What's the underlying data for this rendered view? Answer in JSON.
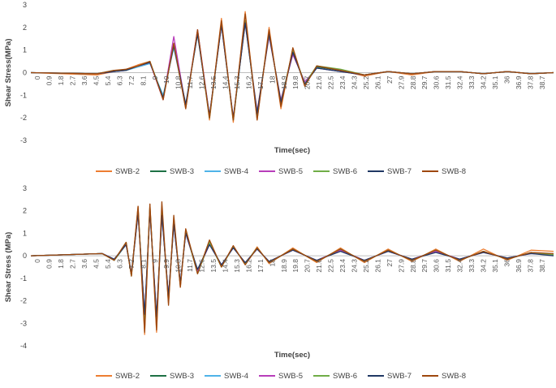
{
  "chart_data": [
    {
      "type": "line",
      "title": "",
      "xlabel": "Time(sec)",
      "ylabel": "Shear Stress(MPa)",
      "ylim": [
        -3,
        3
      ],
      "yticks": [
        "-3",
        "-2",
        "-1",
        "0",
        "1",
        "2",
        "3"
      ],
      "x_ticks": [
        "0",
        "0.9",
        "1.8",
        "2.7",
        "3.6",
        "4.5",
        "5.4",
        "6.3",
        "7.2",
        "8.1",
        "9",
        "10",
        "10.8",
        "11.7",
        "12.6",
        "13.5",
        "14.4",
        "15.3",
        "16.2",
        "17.1",
        "18",
        "18.9",
        "19.8",
        "20.7",
        "21.6",
        "22.5",
        "23.4",
        "24.3",
        "25.2",
        "26.1",
        "27",
        "27.9",
        "28.8",
        "29.7",
        "30.6",
        "31.5",
        "32.4",
        "33.3",
        "34.2",
        "35.1",
        "36",
        "36.9",
        "37.8",
        "38.7"
      ],
      "xlim": [
        0,
        39.5
      ],
      "grid": false,
      "legend": "bottom",
      "series": [
        {
          "name": "SWB-2",
          "color": "#ED7D31",
          "x": [
            0,
            5,
            6.3,
            7.2,
            8.1,
            9,
            10,
            10.8,
            11.7,
            12.6,
            13.5,
            14.4,
            15.3,
            16.2,
            17.1,
            18,
            18.9,
            19.8,
            20.7,
            21.6,
            23.4,
            25.2,
            27,
            28.8,
            30.6,
            32.4,
            34.2,
            36,
            37.8,
            39.5
          ],
          "y": [
            0,
            -0.1,
            0.05,
            0.15,
            0.35,
            0.5,
            -1.2,
            1.3,
            -1.6,
            1.9,
            -2.1,
            2.4,
            -2.2,
            2.7,
            -2.1,
            2.0,
            -1.6,
            1.1,
            -0.6,
            0.3,
            0.1,
            -0.15,
            0.05,
            -0.1,
            0.05,
            0.05,
            -0.05,
            0.05,
            -0.05,
            0
          ]
        },
        {
          "name": "SWB-3",
          "color": "#1E7145",
          "x": [
            0,
            5,
            6.3,
            7.2,
            8.1,
            9,
            10,
            10.8,
            11.7,
            12.6,
            13.5,
            14.4,
            15.3,
            16.2,
            17.1,
            18,
            18.9,
            19.8,
            20.7,
            21.6,
            23.4,
            25.2,
            27,
            28.8,
            30.6,
            32.4,
            34.2,
            36,
            37.8,
            39.5
          ],
          "y": [
            0,
            -0.05,
            0.1,
            0.1,
            0.3,
            0.45,
            -1.1,
            1.2,
            -1.5,
            1.8,
            -2.0,
            2.2,
            -2.1,
            2.3,
            -1.9,
            1.8,
            -1.4,
            1.0,
            -0.5,
            0.25,
            0.1,
            -0.1,
            0.05,
            -0.05,
            0.05,
            0.05,
            -0.05,
            0.05,
            -0.05,
            0
          ]
        },
        {
          "name": "SWB-4",
          "color": "#4FB3E8",
          "x": [
            0,
            5,
            6.3,
            7.2,
            8.1,
            9,
            10,
            10.8,
            11.7,
            12.6,
            13.5,
            14.4,
            15.3,
            16.2,
            17.1,
            18,
            18.9,
            19.8,
            20.7,
            21.6,
            23.4,
            25.2,
            27,
            28.8,
            30.6,
            32.4,
            34.2,
            36,
            37.8,
            39.5
          ],
          "y": [
            0,
            -0.05,
            0.05,
            0.1,
            0.25,
            0.4,
            -1.0,
            1.1,
            -1.4,
            1.7,
            -1.9,
            2.1,
            -2.0,
            2.2,
            -1.8,
            1.7,
            -1.3,
            0.9,
            -0.5,
            0.2,
            0.05,
            -0.1,
            0.05,
            -0.05,
            0.05,
            0.05,
            -0.05,
            0.05,
            -0.05,
            0
          ]
        },
        {
          "name": "SWB-5",
          "color": "#B83DBA",
          "x": [
            0,
            5,
            6.3,
            7.2,
            8.1,
            9,
            10,
            10.8,
            11.7,
            12.6,
            13.5,
            14.4,
            15.3,
            16.2,
            17.1,
            18,
            18.9,
            19.8,
            20.7,
            21.6,
            23.4,
            25.2,
            27,
            28.8,
            30.6,
            32.4,
            34.2,
            36,
            37.8,
            39.5
          ],
          "y": [
            0,
            -0.05,
            0.05,
            0.1,
            0.3,
            0.45,
            -1.2,
            1.6,
            -1.5,
            1.9,
            -1.9,
            2.1,
            -2.0,
            2.2,
            -1.7,
            1.6,
            -1.2,
            0.8,
            -0.4,
            0.2,
            0.05,
            -0.1,
            0.05,
            -0.05,
            0.05,
            0.05,
            -0.05,
            0.05,
            -0.05,
            0
          ]
        },
        {
          "name": "SWB-6",
          "color": "#70AD47",
          "x": [
            0,
            5,
            6.3,
            7.2,
            8.1,
            9,
            10,
            10.8,
            11.7,
            12.6,
            13.5,
            14.4,
            15.3,
            16.2,
            17.1,
            18,
            18.9,
            19.8,
            20.7,
            21.6,
            23.4,
            25.2,
            27,
            28.8,
            30.6,
            32.4,
            34.2,
            36,
            37.8,
            39.5
          ],
          "y": [
            0,
            -0.05,
            0.1,
            0.1,
            0.3,
            0.5,
            -1.1,
            1.2,
            -1.5,
            1.8,
            -2.0,
            2.2,
            -2.1,
            2.3,
            -1.8,
            1.7,
            -1.3,
            1.0,
            -0.5,
            0.3,
            0.15,
            -0.1,
            0.05,
            -0.05,
            0.05,
            0.05,
            -0.05,
            0.05,
            -0.05,
            0
          ]
        },
        {
          "name": "SWB-7",
          "color": "#203864",
          "x": [
            0,
            5,
            6.3,
            7.2,
            8.1,
            9,
            10,
            10.8,
            11.7,
            12.6,
            13.5,
            14.4,
            15.3,
            16.2,
            17.1,
            18,
            18.9,
            19.8,
            20.7,
            21.6,
            23.4,
            25.2,
            27,
            28.8,
            30.6,
            32.4,
            34.2,
            36,
            37.8,
            39.5
          ],
          "y": [
            0,
            -0.05,
            0.05,
            0.1,
            0.3,
            0.45,
            -1.1,
            1.2,
            -1.4,
            1.7,
            -1.9,
            2.1,
            -2.0,
            2.2,
            -1.8,
            1.7,
            -1.3,
            0.9,
            -0.5,
            0.2,
            0.05,
            -0.1,
            0.05,
            -0.05,
            0.05,
            0.05,
            -0.05,
            0.05,
            -0.05,
            0
          ]
        },
        {
          "name": "SWB-8",
          "color": "#9E480E",
          "x": [
            0,
            5,
            6.3,
            7.2,
            8.1,
            9,
            10,
            10.8,
            11.7,
            12.6,
            13.5,
            14.4,
            15.3,
            16.2,
            17.1,
            18,
            18.9,
            19.8,
            20.7,
            21.6,
            23.4,
            25.2,
            27,
            28.8,
            30.6,
            32.4,
            34.2,
            36,
            37.8,
            39.5
          ],
          "y": [
            0,
            -0.05,
            0.1,
            0.15,
            0.3,
            0.5,
            -1.2,
            1.3,
            -1.6,
            1.9,
            -2.0,
            2.3,
            -2.1,
            2.6,
            -2.1,
            1.9,
            -1.5,
            1.1,
            -0.6,
            0.3,
            0.1,
            -0.1,
            0.05,
            -0.05,
            0.05,
            0.05,
            -0.05,
            0.05,
            -0.05,
            0
          ]
        }
      ]
    },
    {
      "type": "line",
      "title": "",
      "xlabel": "Time(sec)",
      "ylabel": "Shear Stress (MPa)",
      "ylim": [
        -4,
        3
      ],
      "yticks": [
        "-4",
        "-3",
        "-2",
        "-1",
        "0",
        "1",
        "2",
        "3"
      ],
      "x_ticks": [
        "0",
        "0.9",
        "1.8",
        "2.7",
        "3.6",
        "4.5",
        "5.4",
        "6.3",
        "7.2",
        "8.1",
        "9",
        "9.9",
        "10.8",
        "11.7",
        "12.6",
        "13.5",
        "14.4",
        "15.3",
        "16.2",
        "17.1",
        "18",
        "18.9",
        "19.8",
        "20.7",
        "21.6",
        "22.5",
        "23.4",
        "24.3",
        "25.2",
        "26.1",
        "27",
        "27.9",
        "28.8",
        "29.7",
        "30.6",
        "31.5",
        "32.4",
        "33.3",
        "34.2",
        "35.1",
        "36",
        "36.9",
        "37.8",
        "38.7"
      ],
      "xlim": [
        0,
        39.5
      ],
      "grid": false,
      "legend": "bottom",
      "series": [
        {
          "name": "SWB-2",
          "color": "#ED7D31",
          "x": [
            0,
            5.4,
            6.3,
            7.2,
            7.6,
            8.1,
            8.6,
            9,
            9.5,
            9.9,
            10.4,
            10.8,
            11.3,
            11.7,
            12.6,
            13.5,
            14.4,
            15.3,
            16.2,
            17.1,
            18,
            19.8,
            21.6,
            23.4,
            25.2,
            27,
            28.8,
            30.6,
            32.4,
            34.2,
            36,
            37.8,
            39.5
          ],
          "y": [
            0,
            0.1,
            -0.2,
            0.6,
            -0.9,
            2.2,
            -3.5,
            2.3,
            -3.4,
            2.1,
            -2.1,
            1.7,
            -1.4,
            1.2,
            -0.8,
            0.7,
            -0.5,
            0.45,
            -0.4,
            0.4,
            -0.35,
            0.35,
            -0.3,
            0.35,
            -0.3,
            0.3,
            -0.25,
            0.3,
            -0.25,
            0.3,
            -0.2,
            0.25,
            0.2
          ]
        },
        {
          "name": "SWB-3",
          "color": "#1E7145",
          "x": [
            0,
            5.4,
            6.3,
            7.2,
            7.6,
            8.1,
            8.6,
            9,
            9.5,
            9.9,
            10.4,
            10.8,
            11.3,
            11.7,
            12.6,
            13.5,
            14.4,
            15.3,
            16.2,
            17.1,
            18,
            19.8,
            21.6,
            23.4,
            25.2,
            27,
            28.8,
            30.6,
            32.4,
            34.2,
            36,
            37.8,
            39.5
          ],
          "y": [
            0,
            0.1,
            -0.2,
            0.5,
            -0.8,
            2.0,
            -2.8,
            2.1,
            -2.9,
            2.0,
            -1.9,
            1.5,
            -1.3,
            1.1,
            -0.7,
            0.6,
            -0.45,
            0.4,
            -0.35,
            0.35,
            -0.3,
            0.3,
            -0.25,
            0.3,
            -0.25,
            0.25,
            -0.2,
            0.25,
            -0.2,
            0.2,
            -0.15,
            0.15,
            0.05
          ]
        },
        {
          "name": "SWB-4",
          "color": "#4FB3E8",
          "x": [
            0,
            5.4,
            6.3,
            7.2,
            7.6,
            8.1,
            8.6,
            9,
            9.5,
            9.9,
            10.4,
            10.8,
            11.3,
            11.7,
            12.6,
            13.5,
            14.4,
            15.3,
            16.2,
            17.1,
            18,
            19.8,
            21.6,
            23.4,
            25.2,
            27,
            28.8,
            30.6,
            32.4,
            34.2,
            36,
            37.8,
            39.5
          ],
          "y": [
            0,
            0.1,
            -0.15,
            0.5,
            -0.8,
            1.9,
            -2.7,
            2.0,
            -2.8,
            1.9,
            -1.8,
            1.4,
            -1.2,
            1.0,
            -0.7,
            0.55,
            -0.4,
            0.35,
            -0.3,
            0.3,
            -0.25,
            0.25,
            -0.2,
            0.25,
            -0.2,
            0.2,
            -0.15,
            0.2,
            -0.15,
            0.15,
            -0.1,
            0.1,
            0.05
          ]
        },
        {
          "name": "SWB-5",
          "color": "#B83DBA",
          "x": [
            0,
            5.4,
            6.3,
            7.2,
            7.6,
            8.1,
            8.6,
            9,
            9.5,
            9.9,
            10.4,
            10.8,
            11.3,
            11.7,
            12.6,
            13.5,
            14.4,
            15.3,
            16.2,
            17.1,
            18,
            19.8,
            21.6,
            23.4,
            25.2,
            27,
            28.8,
            30.6,
            32.4,
            34.2,
            36,
            37.8,
            39.5
          ],
          "y": [
            0,
            0.1,
            -0.15,
            0.5,
            -0.8,
            1.9,
            -2.6,
            2.0,
            -2.7,
            1.8,
            -1.8,
            1.4,
            -1.2,
            1.0,
            -0.7,
            0.5,
            -0.4,
            0.35,
            -0.3,
            0.3,
            -0.25,
            0.25,
            -0.2,
            0.25,
            -0.2,
            0.2,
            -0.15,
            0.2,
            -0.15,
            0.15,
            -0.1,
            0.1,
            0.05
          ]
        },
        {
          "name": "SWB-6",
          "color": "#70AD47",
          "x": [
            0,
            5.4,
            6.3,
            7.2,
            7.6,
            8.1,
            8.6,
            9,
            9.5,
            9.9,
            10.4,
            10.8,
            11.3,
            11.7,
            12.6,
            13.5,
            14.4,
            15.3,
            16.2,
            17.1,
            18,
            19.8,
            21.6,
            23.4,
            25.2,
            27,
            28.8,
            30.6,
            32.4,
            34.2,
            36,
            37.8,
            39.5
          ],
          "y": [
            0,
            0.1,
            -0.2,
            0.6,
            -0.9,
            2.1,
            -2.9,
            2.2,
            -3.0,
            2.0,
            -2.0,
            1.6,
            -1.3,
            1.1,
            -0.8,
            0.6,
            -0.5,
            0.4,
            -0.35,
            0.35,
            -0.3,
            0.3,
            -0.25,
            0.3,
            -0.25,
            0.25,
            -0.2,
            0.25,
            -0.2,
            0.2,
            -0.15,
            0.15,
            0.05
          ]
        },
        {
          "name": "SWB-7",
          "color": "#203864",
          "x": [
            0,
            5.4,
            6.3,
            7.2,
            7.6,
            8.1,
            8.6,
            9,
            9.5,
            9.9,
            10.4,
            10.8,
            11.3,
            11.7,
            12.6,
            13.5,
            14.4,
            15.3,
            16.2,
            17.1,
            18,
            19.8,
            21.6,
            23.4,
            25.2,
            27,
            28.8,
            30.6,
            32.4,
            34.2,
            36,
            37.8,
            39.5
          ],
          "y": [
            0,
            0.1,
            -0.15,
            0.5,
            -0.8,
            1.9,
            -2.6,
            2.0,
            -2.7,
            1.8,
            -1.8,
            1.4,
            -1.2,
            1.0,
            -0.6,
            0.5,
            -0.4,
            0.35,
            -0.3,
            0.3,
            -0.25,
            0.25,
            -0.2,
            0.2,
            -0.2,
            0.2,
            -0.15,
            0.15,
            -0.15,
            0.15,
            -0.1,
            0.1,
            0
          ]
        },
        {
          "name": "SWB-8",
          "color": "#9E480E",
          "x": [
            0,
            5.4,
            6.3,
            7.2,
            7.6,
            8.1,
            8.6,
            9,
            9.5,
            9.9,
            10.4,
            10.8,
            11.3,
            11.7,
            12.6,
            13.5,
            14.4,
            15.3,
            16.2,
            17.1,
            18,
            19.8,
            21.6,
            23.4,
            25.2,
            27,
            28.8,
            30.6,
            32.4,
            34.2,
            36,
            37.8,
            39.5
          ],
          "y": [
            0,
            0.1,
            -0.2,
            0.6,
            -0.9,
            2.2,
            -3.4,
            2.3,
            -3.3,
            2.4,
            -2.2,
            1.8,
            -1.4,
            1.2,
            -0.8,
            0.7,
            -0.5,
            0.45,
            -0.4,
            0.35,
            -0.3,
            0.3,
            -0.25,
            0.3,
            -0.25,
            0.25,
            -0.2,
            0.25,
            -0.2,
            0.2,
            -0.15,
            0.15,
            0.1
          ]
        }
      ]
    }
  ]
}
